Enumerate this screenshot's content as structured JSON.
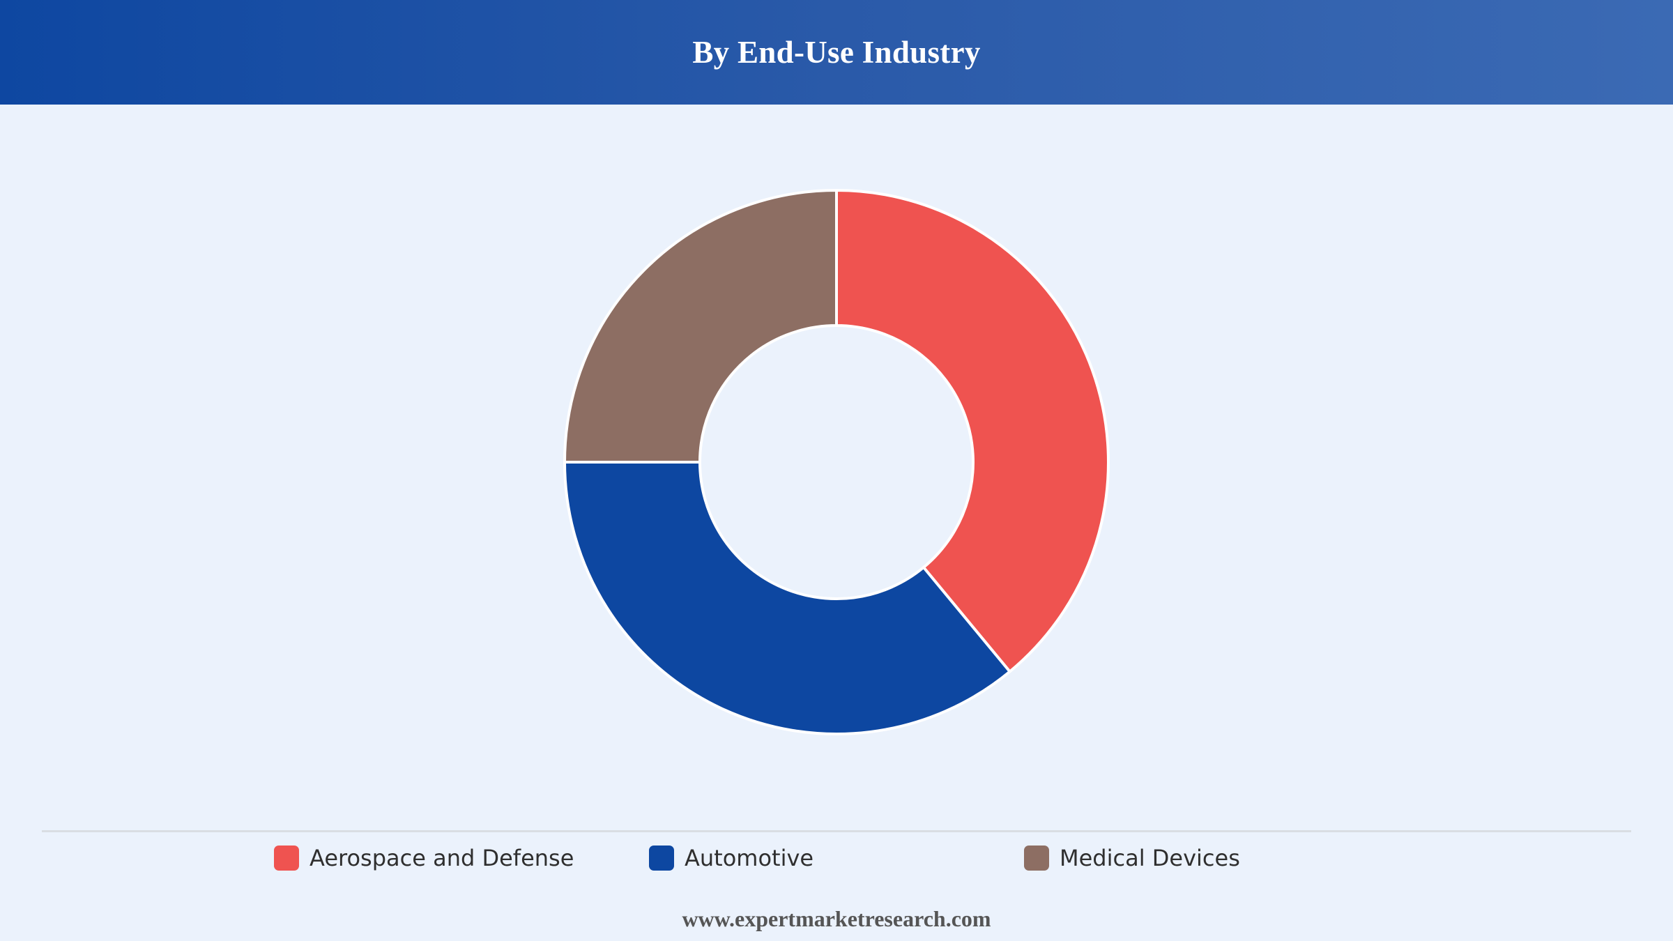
{
  "header": {
    "title": "By End-Use Industry"
  },
  "chart_data": {
    "type": "pie",
    "donut": true,
    "title": "By End-Use Industry",
    "categories": [
      "Aerospace and Defense",
      "Automotive",
      "Medical Devices"
    ],
    "values": [
      39,
      36,
      25
    ],
    "colors": [
      "#ef5350",
      "#0d47a1",
      "#8d6e63"
    ],
    "legend_position": "bottom",
    "start_angle": "top",
    "direction": "clockwise"
  },
  "legend": {
    "items": [
      {
        "label": "Aerospace and Defense",
        "color": "#ef5350"
      },
      {
        "label": "Automotive",
        "color": "#0d47a1"
      },
      {
        "label": "Medical Devices",
        "color": "#8d6e63"
      }
    ]
  },
  "footer": {
    "text": "www.expertmarketresearch.com"
  }
}
